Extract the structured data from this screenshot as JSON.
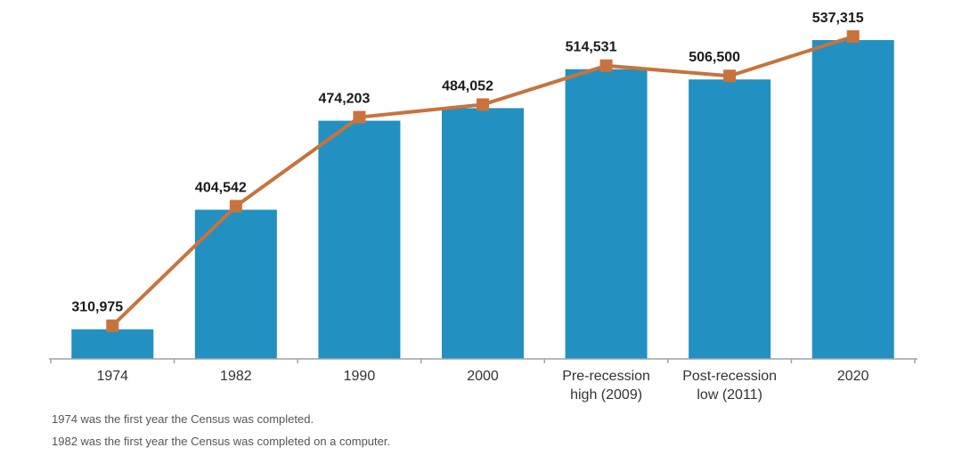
{
  "chart_data": {
    "type": "bar",
    "overlay": "line",
    "categories": [
      [
        "1974"
      ],
      [
        "1982"
      ],
      [
        "1990"
      ],
      [
        "2000"
      ],
      [
        "Pre-recession",
        "high (2009)"
      ],
      [
        "Post-recession",
        "low (2011)"
      ],
      [
        "2020"
      ]
    ],
    "values": [
      310975,
      404542,
      474203,
      484052,
      514531,
      506500,
      537315
    ],
    "value_labels": [
      "310,975",
      "404,542",
      "474,203",
      "484,052",
      "514,531",
      "506,500",
      "537,315"
    ],
    "ylim": [
      285000,
      545000
    ],
    "colors": {
      "bar": "#2290c0",
      "line": "#c8733c",
      "axis": "#9aa3a8"
    }
  },
  "footnotes": [
    "1974 was the first year the Census was completed.",
    "1982 was the first year the Census was completed on a computer."
  ]
}
